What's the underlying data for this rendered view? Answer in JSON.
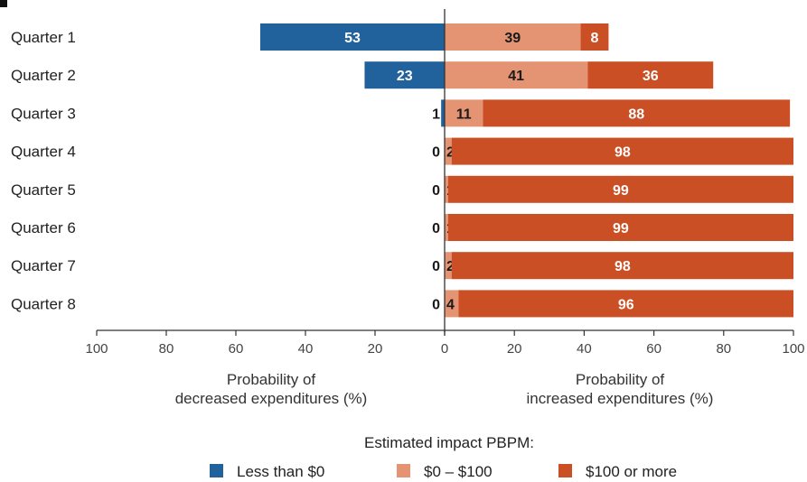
{
  "chart_data": {
    "type": "bar",
    "orientation": "horizontal-diverging",
    "categories": [
      "Quarter 1",
      "Quarter 2",
      "Quarter 3",
      "Quarter 4",
      "Quarter 5",
      "Quarter 6",
      "Quarter 7",
      "Quarter 8"
    ],
    "series": [
      {
        "name": "Less than $0",
        "color": "#21629c",
        "direction": "left",
        "values": [
          53,
          23,
          1,
          0,
          0,
          0,
          0,
          0
        ]
      },
      {
        "name": "$0 – $100",
        "color": "#e49472",
        "direction": "right",
        "values": [
          39,
          41,
          11,
          2,
          1,
          1,
          2,
          4
        ]
      },
      {
        "name": "$100 or more",
        "color": "#cb4f24",
        "direction": "right",
        "values": [
          8,
          36,
          88,
          98,
          99,
          99,
          98,
          96
        ]
      }
    ],
    "left_axis": {
      "range": [
        100,
        0
      ],
      "ticks": [
        "100",
        "80",
        "60",
        "40",
        "20",
        "0"
      ],
      "title_lines": [
        "Probability of",
        "decreased expenditures (%)"
      ]
    },
    "right_axis": {
      "range": [
        0,
        100
      ],
      "ticks": [
        "0",
        "20",
        "40",
        "60",
        "80",
        "100"
      ],
      "title_lines": [
        "Probability of",
        "increased expenditures (%)"
      ]
    },
    "legend": {
      "title": "Estimated impact PBPM:",
      "placement": "bottom"
    },
    "grid": false
  }
}
